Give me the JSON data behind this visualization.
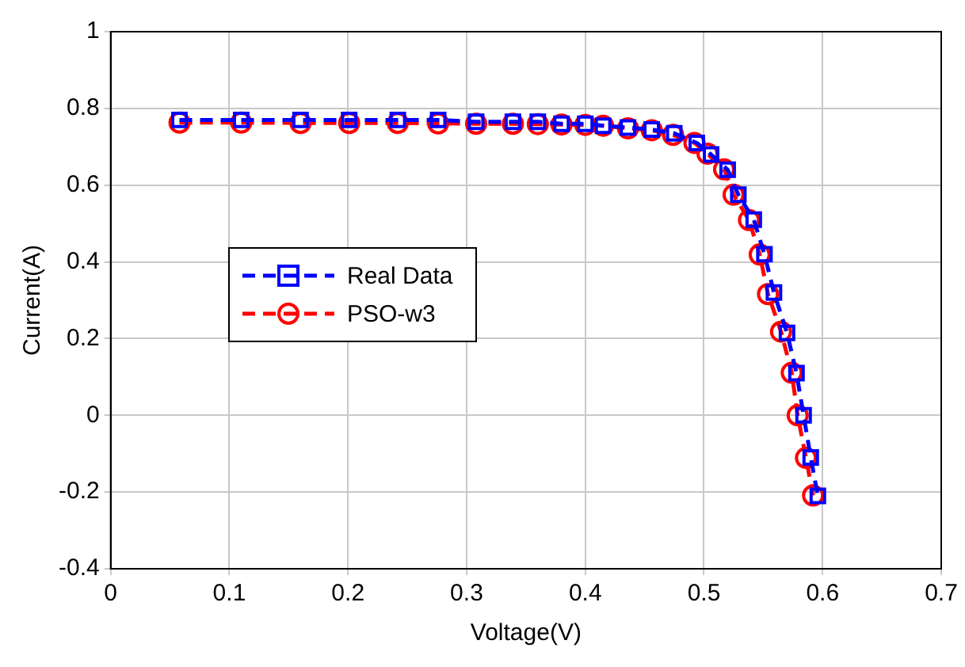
{
  "chart_data": {
    "type": "line",
    "xlabel": "Voltage(V)",
    "ylabel": "Current(A)",
    "xlim": [
      0,
      0.7
    ],
    "xticks": [
      0,
      0.1,
      0.2,
      0.3,
      0.4,
      0.5,
      0.6,
      0.7
    ],
    "ylim": [
      -0.4,
      1
    ],
    "yticks": [
      -0.4,
      -0.2,
      0,
      0.2,
      0.4,
      0.6,
      0.8,
      1
    ],
    "grid": true,
    "legend": "left",
    "line_style": "dashed",
    "series": [
      {
        "name": "Real Data",
        "color": "#0000ff",
        "marker": "square",
        "x": [
          0.058,
          0.11,
          0.16,
          0.201,
          0.242,
          0.276,
          0.308,
          0.339,
          0.36,
          0.38,
          0.4,
          0.415,
          0.436,
          0.456,
          0.475,
          0.494,
          0.506,
          0.52,
          0.529,
          0.542,
          0.551,
          0.559,
          0.57,
          0.578,
          0.584,
          0.59,
          0.596
        ],
        "values": [
          0.77,
          0.77,
          0.77,
          0.77,
          0.77,
          0.77,
          0.765,
          0.765,
          0.765,
          0.76,
          0.76,
          0.755,
          0.75,
          0.745,
          0.735,
          0.71,
          0.68,
          0.64,
          0.575,
          0.51,
          0.42,
          0.32,
          0.215,
          0.11,
          0.0,
          -0.11,
          -0.21
        ]
      },
      {
        "name": "PSO-w3",
        "color": "#ff0000",
        "marker": "circle",
        "x": [
          0.058,
          0.11,
          0.16,
          0.201,
          0.242,
          0.276,
          0.308,
          0.339,
          0.36,
          0.38,
          0.4,
          0.415,
          0.436,
          0.456,
          0.474,
          0.492,
          0.503,
          0.517,
          0.525,
          0.538,
          0.547,
          0.554,
          0.565,
          0.574,
          0.579,
          0.586,
          0.592
        ],
        "values": [
          0.763,
          0.763,
          0.762,
          0.762,
          0.762,
          0.761,
          0.76,
          0.76,
          0.759,
          0.758,
          0.757,
          0.755,
          0.748,
          0.743,
          0.731,
          0.71,
          0.682,
          0.641,
          0.575,
          0.509,
          0.419,
          0.316,
          0.218,
          0.111,
          0.0,
          -0.111,
          -0.209
        ]
      }
    ]
  }
}
